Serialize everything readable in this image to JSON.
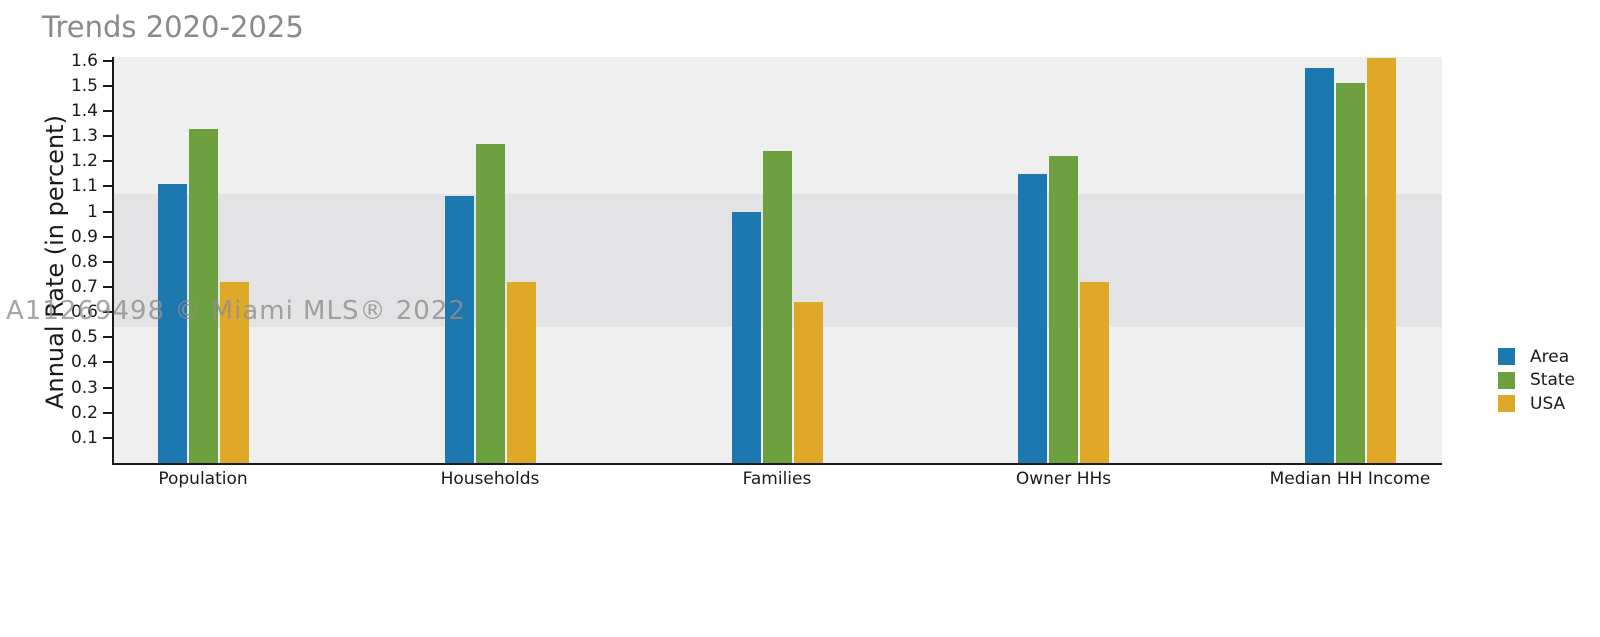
{
  "title": "Trends 2020-2025",
  "watermark_text": "A11269498 © Miami MLS® 2022",
  "colors": {
    "area_series": "#1d78b0",
    "state_series": "#6fa03f",
    "usa_series": "#dfa928",
    "plot_background": "#efeff0",
    "reference_band": "#e3e3e6",
    "title_text": "#8a8a8a",
    "axis_text": "#1a1a1a",
    "watermark_text": "#8f8f8f"
  },
  "chart_data": {
    "type": "bar",
    "title": "Trends 2020-2025",
    "xlabel": "",
    "ylabel": "Annual Rate (in percent)",
    "categories": [
      "Population",
      "Households",
      "Families",
      "Owner HHs",
      "Median HH Income"
    ],
    "series": [
      {
        "name": "Area",
        "color": "#1d78b0",
        "values": [
          1.11,
          1.06,
          1.0,
          1.15,
          1.57
        ]
      },
      {
        "name": "State",
        "color": "#6fa03f",
        "values": [
          1.33,
          1.27,
          1.24,
          1.22,
          1.51
        ]
      },
      {
        "name": "USA",
        "color": "#dfa928",
        "values": [
          0.72,
          0.72,
          0.64,
          0.72,
          1.61
        ]
      }
    ],
    "ylim": [
      0,
      1.6
    ],
    "ytick_values": [
      0.1,
      0.2,
      0.3,
      0.4,
      0.5,
      0.6,
      0.7,
      0.8,
      0.9,
      1,
      1.1,
      1.2,
      1.3,
      1.4,
      1.5,
      1.6
    ],
    "ytick_labels": [
      "0.1",
      "0.2",
      "0.3",
      "0.4",
      "0.5",
      "0.6",
      "0.7",
      "0.8",
      "0.9",
      "1",
      "1.1",
      "1.2",
      "1.3",
      "1.4",
      "1.5",
      "1.6"
    ],
    "grid": false,
    "legend_position": "right",
    "legend_entries": [
      "Area",
      "State",
      "USA"
    ],
    "background_band": {
      "from": 0.54,
      "to": 1.07
    }
  }
}
